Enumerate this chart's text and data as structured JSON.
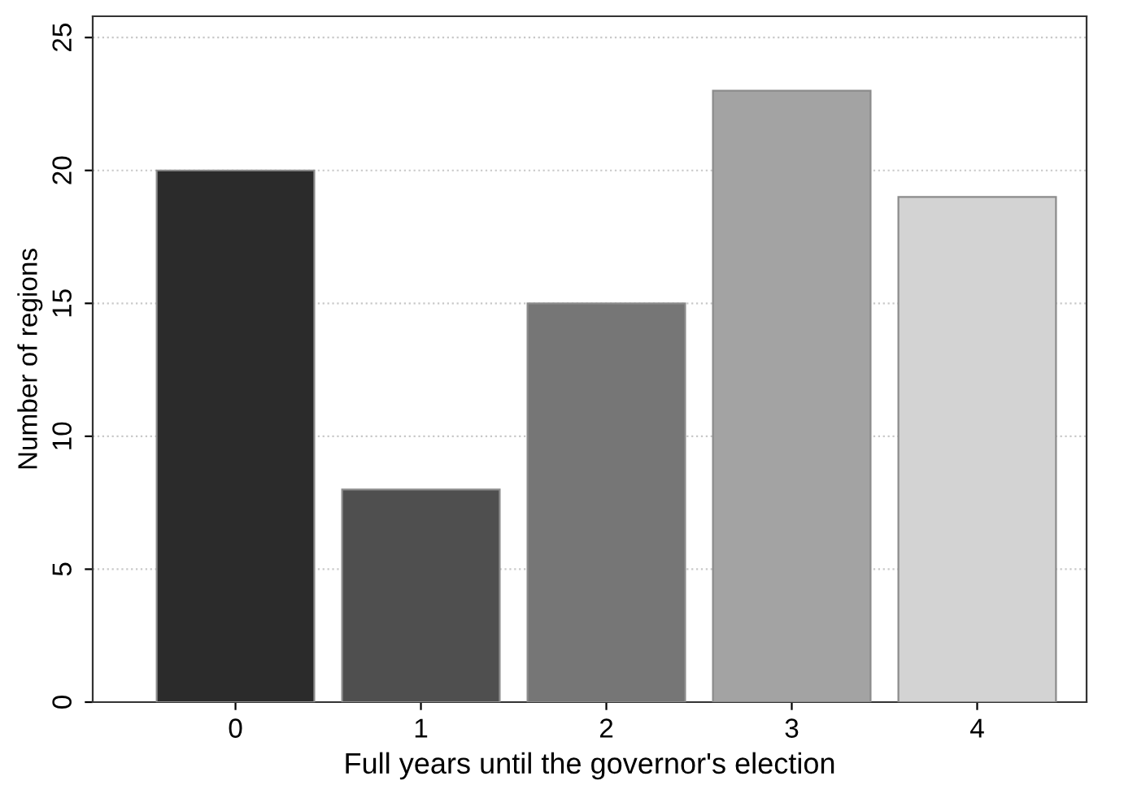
{
  "chart_data": {
    "type": "bar",
    "categories": [
      "0",
      "1",
      "2",
      "3",
      "4"
    ],
    "values": [
      20,
      8,
      15,
      23,
      19
    ],
    "colors": [
      "#2b2b2b",
      "#4f4f4f",
      "#767676",
      "#a3a3a3",
      "#d3d3d3"
    ],
    "xlabel": "Full years until the governor's election",
    "ylabel": "Number of regions",
    "ylim": [
      0,
      25.8
    ],
    "yticks": [
      0,
      5,
      10,
      15,
      20,
      25
    ],
    "grid": "y"
  }
}
